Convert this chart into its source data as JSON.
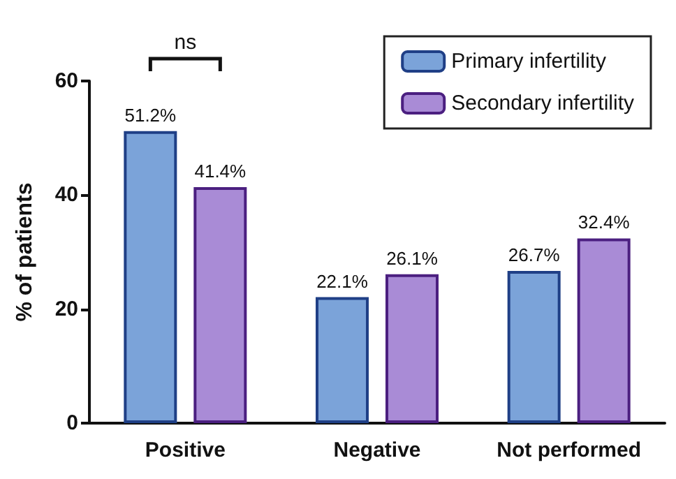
{
  "chart_data": {
    "type": "bar",
    "ylabel": "% of patients",
    "categories": [
      "Positive",
      "Negative",
      "Not performed"
    ],
    "series": [
      {
        "name": "Primary infertility",
        "color": "#7ba3d9",
        "values": [
          51.2,
          22.1,
          26.7
        ],
        "value_labels": [
          "51.2%",
          "22.1%",
          "26.7%"
        ]
      },
      {
        "name": "Secondary infertility",
        "color": "#a98bd6",
        "values": [
          41.4,
          26.1,
          32.4
        ],
        "value_labels": [
          "41.4%",
          "26.1%",
          "32.4%"
        ]
      }
    ],
    "ylim": [
      0,
      60
    ],
    "yticks": [
      0,
      20,
      40,
      60
    ],
    "grid": false,
    "legend": "top right",
    "annotations": [
      "ns"
    ]
  }
}
